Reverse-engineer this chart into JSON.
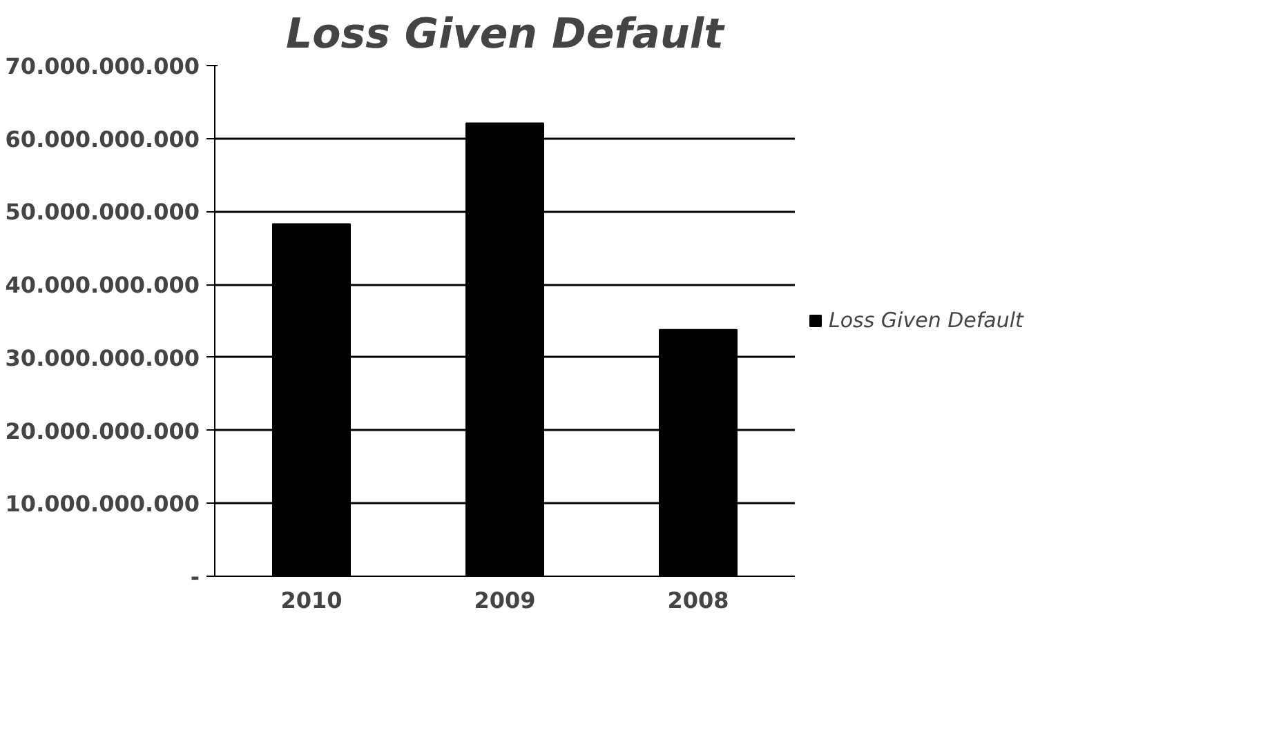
{
  "chart_data": {
    "type": "bar",
    "title": "Loss Given Default",
    "categories": [
      "2010",
      "2009",
      "2008"
    ],
    "series": [
      {
        "name": "Loss Given Default",
        "color": "#000000",
        "values": [
          48300000000,
          62100000000,
          33800000000
        ]
      }
    ],
    "ylim": [
      0,
      70000000000
    ],
    "yticks": [
      {
        "value": 0,
        "label": "-"
      },
      {
        "value": 10000000000,
        "label": "10.000.000.000"
      },
      {
        "value": 20000000000,
        "label": "20.000.000.000"
      },
      {
        "value": 30000000000,
        "label": "30.000.000.000"
      },
      {
        "value": 40000000000,
        "label": "40.000.000.000"
      },
      {
        "value": 50000000000,
        "label": "50.000.000.000"
      },
      {
        "value": 60000000000,
        "label": "60.000.000.000"
      },
      {
        "value": 70000000000,
        "label": "70.000.000.000"
      }
    ],
    "grid": "y",
    "legend": "right"
  }
}
